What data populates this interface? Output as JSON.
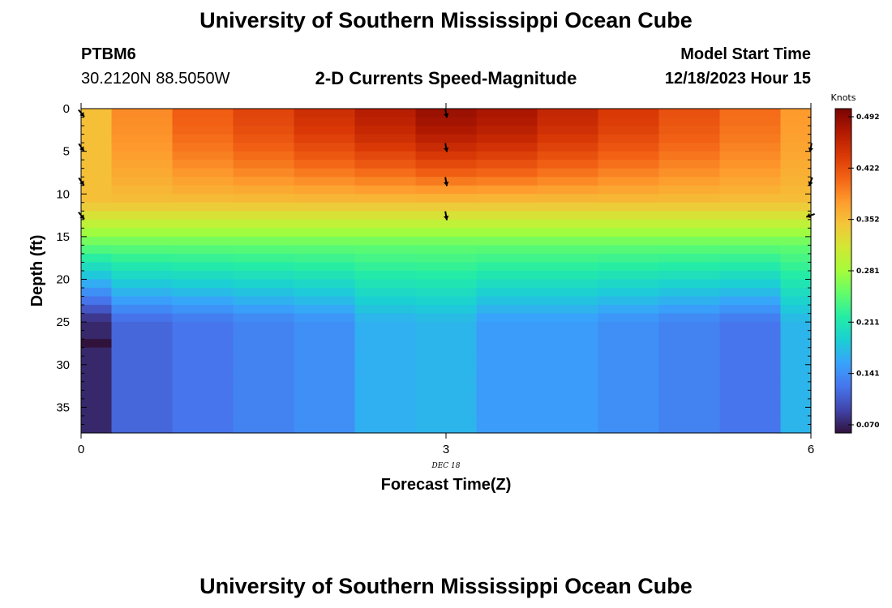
{
  "header": {
    "title": "University of Southern Mississippi Ocean Cube",
    "station": "PTBM6",
    "coords": "30.2120N  88.5050W",
    "subtitle": "2-D Currents Speed-Magnitude",
    "model_label": "Model Start Time",
    "model_time": "12/18/2023 Hour 15"
  },
  "footer": {
    "title": "University of Southern Mississippi Ocean Cube"
  },
  "chart_data": {
    "type": "heatmap",
    "title": "2-D Currents Speed-Magnitude",
    "xlabel": "Forecast Time(Z)",
    "ylabel": "Depth (ft)",
    "x_date_label": "DEC 18",
    "x_ticks": [
      0,
      3,
      6
    ],
    "y_ticks": [
      0,
      5,
      10,
      15,
      20,
      25,
      30,
      35
    ],
    "xlim": [
      0,
      6
    ],
    "ylim": [
      0,
      38
    ],
    "colorbar": {
      "label": "Knots",
      "ticks": [
        "0.492",
        "0.422",
        "0.352",
        "0.281",
        "0.211",
        "0.141",
        "0.070"
      ],
      "range": [
        0.04,
        0.53
      ],
      "colors": [
        "#30123b",
        "#4145ab",
        "#4675ed",
        "#39a2fc",
        "#1bcfd4",
        "#24eca6",
        "#61fc6c",
        "#a4fc3b",
        "#d1e834",
        "#f3c63a",
        "#fe9b2d",
        "#f36315",
        "#d93806",
        "#b11901",
        "#7a0403"
      ]
    },
    "x_columns": [
      0.0,
      0.5,
      1.0,
      1.5,
      2.0,
      2.5,
      3.0,
      3.5,
      4.0,
      4.5,
      5.0,
      5.5,
      6.0
    ],
    "surface_speed_by_time": [
      0.36,
      0.4,
      0.43,
      0.45,
      0.47,
      0.49,
      0.51,
      0.5,
      0.48,
      0.46,
      0.44,
      0.42,
      0.39
    ],
    "bottom_speed_by_time": [
      0.055,
      0.1,
      0.11,
      0.12,
      0.13,
      0.155,
      0.16,
      0.14,
      0.14,
      0.13,
      0.12,
      0.11,
      0.16
    ],
    "anomaly": {
      "x": 0.0,
      "depth": 28,
      "speed": 0.03
    },
    "vectors": [
      {
        "x": 0,
        "depth": 0.5,
        "angle_deg": 50
      },
      {
        "x": 0,
        "depth": 4.5,
        "angle_deg": 55
      },
      {
        "x": 0,
        "depth": 8.5,
        "angle_deg": 55
      },
      {
        "x": 0,
        "depth": 12.5,
        "angle_deg": 50
      },
      {
        "x": 3,
        "depth": 0.5,
        "angle_deg": 80
      },
      {
        "x": 3,
        "depth": 4.5,
        "angle_deg": 80
      },
      {
        "x": 3,
        "depth": 8.5,
        "angle_deg": 80
      },
      {
        "x": 3,
        "depth": 12.5,
        "angle_deg": 80
      },
      {
        "x": 6,
        "depth": 4.5,
        "angle_deg": 100
      },
      {
        "x": 6,
        "depth": 8.5,
        "angle_deg": 110
      },
      {
        "x": 6,
        "depth": 12.5,
        "angle_deg": 160
      }
    ]
  }
}
